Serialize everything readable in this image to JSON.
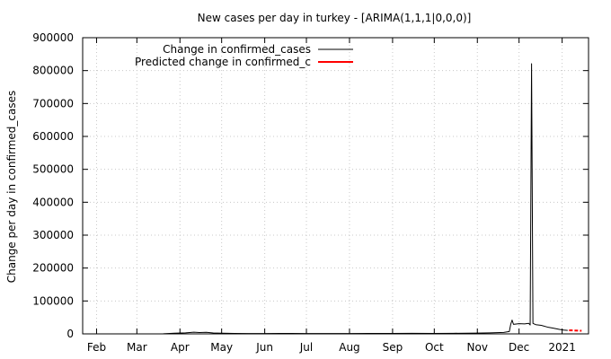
{
  "chart_data": {
    "type": "line",
    "title": "New cases per day in turkey -  [ARIMA(1,1,1|0,0,0)]",
    "xlabel": "",
    "ylabel": "Change per day in confirmed_cases",
    "ylim": [
      0,
      900000
    ],
    "yticks": [
      0,
      100000,
      200000,
      300000,
      400000,
      500000,
      600000,
      700000,
      800000,
      900000
    ],
    "xlim": [
      "2020-01-22",
      "2021-01-20"
    ],
    "xticks": [
      {
        "date": "2020-02-01",
        "label": "Feb"
      },
      {
        "date": "2020-03-01",
        "label": "Mar"
      },
      {
        "date": "2020-04-01",
        "label": "Apr"
      },
      {
        "date": "2020-05-01",
        "label": "May"
      },
      {
        "date": "2020-06-01",
        "label": "Jun"
      },
      {
        "date": "2020-07-01",
        "label": "Jul"
      },
      {
        "date": "2020-08-01",
        "label": "Aug"
      },
      {
        "date": "2020-09-01",
        "label": "Sep"
      },
      {
        "date": "2020-10-01",
        "label": "Oct"
      },
      {
        "date": "2020-11-01",
        "label": "Nov"
      },
      {
        "date": "2020-12-01",
        "label": "Dec"
      },
      {
        "date": "2021-01-01",
        "label": "2021"
      }
    ],
    "grid": true,
    "legend_position": "top-left",
    "series": [
      {
        "name": "Change in confirmed_cases",
        "color": "#000000",
        "points": [
          [
            "2020-01-22",
            0
          ],
          [
            "2020-03-10",
            0
          ],
          [
            "2020-03-20",
            200
          ],
          [
            "2020-03-28",
            2000
          ],
          [
            "2020-04-05",
            3100
          ],
          [
            "2020-04-11",
            5100
          ],
          [
            "2020-04-15",
            4200
          ],
          [
            "2020-04-20",
            4600
          ],
          [
            "2020-04-25",
            2800
          ],
          [
            "2020-05-01",
            2200
          ],
          [
            "2020-05-10",
            1500
          ],
          [
            "2020-05-20",
            1000
          ],
          [
            "2020-06-01",
            900
          ],
          [
            "2020-06-12",
            1500
          ],
          [
            "2020-06-20",
            1200
          ],
          [
            "2020-07-01",
            1100
          ],
          [
            "2020-07-15",
            950
          ],
          [
            "2020-08-01",
            1000
          ],
          [
            "2020-08-15",
            1250
          ],
          [
            "2020-09-01",
            1500
          ],
          [
            "2020-09-15",
            1700
          ],
          [
            "2020-10-01",
            1400
          ],
          [
            "2020-10-15",
            1800
          ],
          [
            "2020-11-01",
            2400
          ],
          [
            "2020-11-10",
            3000
          ],
          [
            "2020-11-20",
            4500
          ],
          [
            "2020-11-24",
            7000
          ],
          [
            "2020-11-25",
            29000
          ],
          [
            "2020-11-26",
            42000
          ],
          [
            "2020-11-27",
            29000
          ],
          [
            "2020-12-01",
            31000
          ],
          [
            "2020-12-05",
            30500
          ],
          [
            "2020-12-08",
            32000
          ],
          [
            "2020-12-09",
            27000
          ],
          [
            "2020-12-10",
            821000
          ],
          [
            "2020-12-11",
            32000
          ],
          [
            "2020-12-13",
            28000
          ],
          [
            "2020-12-17",
            26000
          ],
          [
            "2020-12-22",
            20000
          ],
          [
            "2020-12-26",
            17000
          ],
          [
            "2020-12-30",
            13500
          ],
          [
            "2021-01-02",
            11500
          ],
          [
            "2021-01-05",
            10500
          ]
        ]
      },
      {
        "name": "Predicted change in confirmed_c",
        "color": "#ff0000",
        "points": [
          [
            "2021-01-06",
            11000
          ],
          [
            "2021-01-09",
            10500
          ],
          [
            "2021-01-12",
            10000
          ],
          [
            "2021-01-15",
            9500
          ]
        ]
      }
    ]
  }
}
